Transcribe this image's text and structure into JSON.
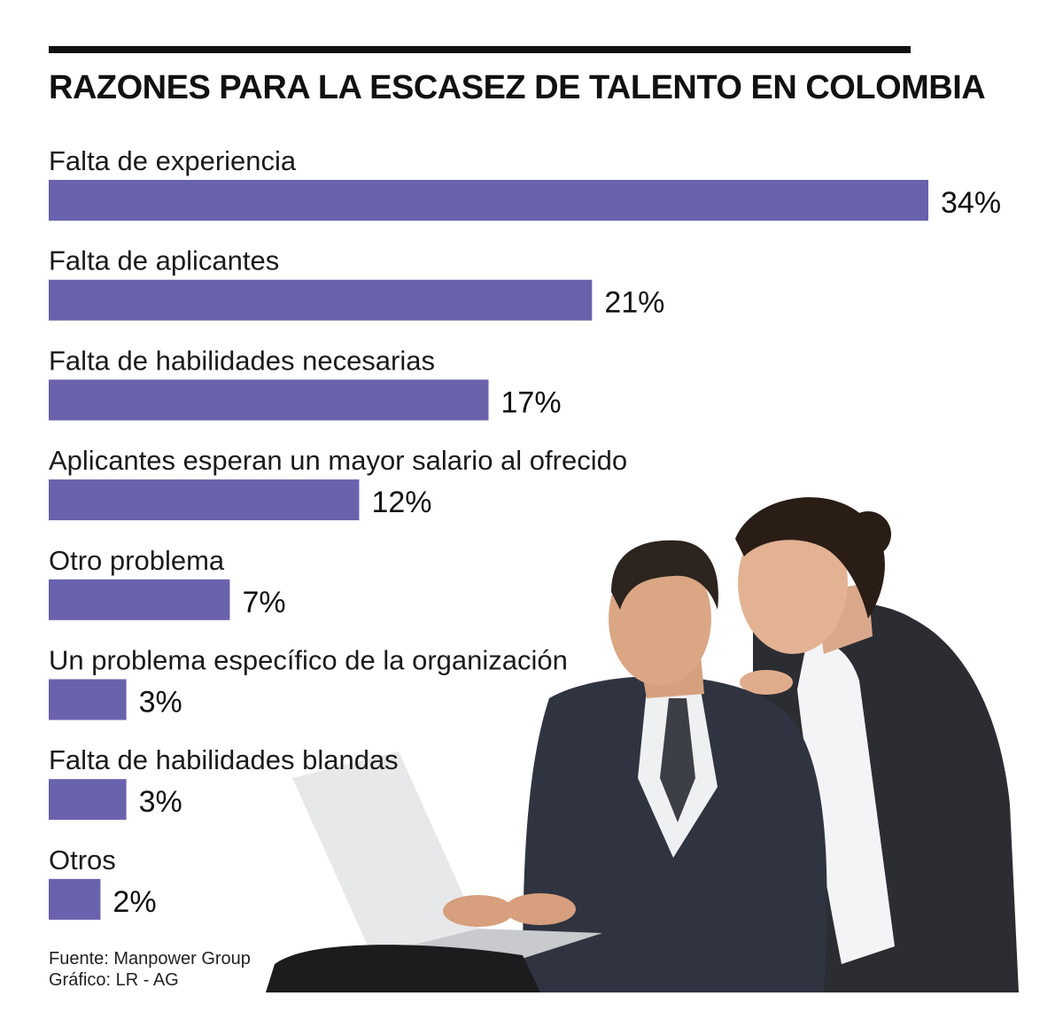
{
  "chart_data": {
    "type": "bar",
    "orientation": "horizontal",
    "title": "RAZONES PARA LA ESCASEZ DE TALENTO EN COLOMBIA",
    "categories": [
      "Falta de experiencia",
      "Falta de aplicantes",
      "Falta de habilidades necesarias",
      "Aplicantes esperan un mayor salario al ofrecido",
      "Otro problema",
      "Un problema específico de la organización",
      "Falta de habilidades blandas",
      "Otros"
    ],
    "values": [
      34,
      21,
      17,
      12,
      7,
      3,
      3,
      2
    ],
    "value_labels": [
      "34%",
      "21%",
      "17%",
      "12%",
      "7%",
      "3%",
      "3%",
      "2%"
    ],
    "xlim": [
      0,
      34
    ],
    "grid": false,
    "bar_color": "#6a62ad"
  },
  "source": {
    "line1": "Fuente: Manpower Group",
    "line2": "Gráfico: LR - AG"
  },
  "image": {
    "icon": "business-people-laptop-photo"
  }
}
